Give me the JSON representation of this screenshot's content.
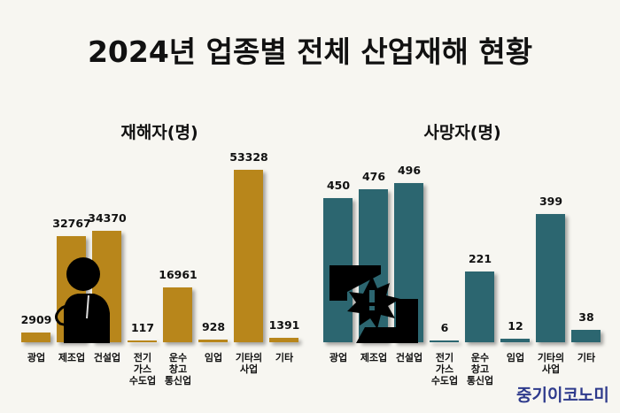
{
  "title": "2024년 업종별 전체 산업재해 현황",
  "watermark": "중기이코노미",
  "colors": {
    "injured": "#b8861b",
    "deaths": "#2c6670"
  },
  "chart_data": [
    {
      "type": "bar",
      "title": "재해자(명)",
      "categories": [
        "광업",
        "제조업",
        "건설업",
        "전기\n가스\n수도업",
        "운수\n창고\n통신업",
        "임업",
        "기타의\n사업",
        "기타"
      ],
      "values": [
        2909,
        32767,
        34370,
        117,
        16961,
        928,
        53328,
        1391
      ],
      "ylim": [
        0,
        53328
      ]
    },
    {
      "type": "bar",
      "title": "사망자(명)",
      "categories": [
        "광업",
        "제조업",
        "건설업",
        "전기\n가스\n수도업",
        "운수\n창고\n통신업",
        "임업",
        "기타의\n사업",
        "기타"
      ],
      "values": [
        450,
        476,
        496,
        6,
        221,
        12,
        399,
        38
      ],
      "ylim": [
        0,
        496
      ]
    }
  ]
}
